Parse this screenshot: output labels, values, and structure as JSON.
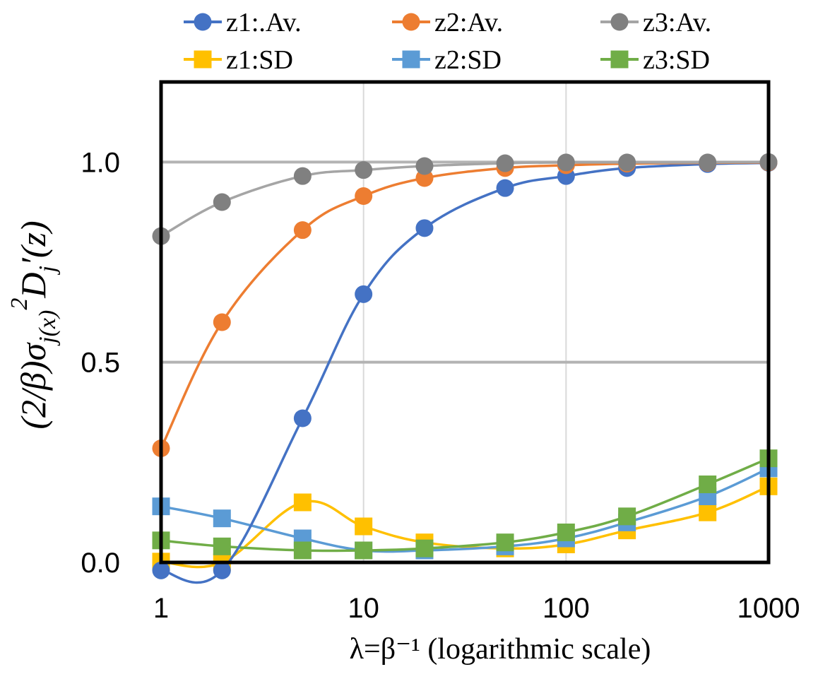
{
  "chart_data": {
    "type": "line",
    "title": "",
    "xlabel": "λ=β⁻¹ (logarithmic scale)",
    "ylabel": "(2/β)σ_j(x)² D_j′(z)",
    "xscale": "log",
    "xlim": [
      1,
      1000
    ],
    "ylim": [
      0,
      1.2
    ],
    "x_ticks": [
      "1",
      "10",
      "100",
      "1000"
    ],
    "y_ticks": [
      "0.0",
      "0.5",
      "1.0"
    ],
    "grid": true,
    "legend_position": "top",
    "x": [
      1,
      2,
      5,
      10,
      20,
      50,
      100,
      200,
      500,
      1000
    ],
    "series": [
      {
        "name": "z1:.Av.",
        "color": "#4472C4",
        "marker": "circle",
        "values": [
          -0.02,
          -0.02,
          0.36,
          0.67,
          0.835,
          0.935,
          0.965,
          0.985,
          0.995,
          0.998
        ]
      },
      {
        "name": "z2:Av.",
        "color": "#ED7D31",
        "marker": "circle",
        "values": [
          0.285,
          0.6,
          0.83,
          0.915,
          0.96,
          0.985,
          0.992,
          0.996,
          0.998,
          0.999
        ]
      },
      {
        "name": "z3:Av.",
        "color": "#A5A5A5",
        "marker_color": "#808080",
        "marker": "circle",
        "values": [
          0.815,
          0.9,
          0.965,
          0.98,
          0.99,
          0.997,
          0.999,
          0.999,
          0.999,
          1.0
        ]
      },
      {
        "name": "z1:SD",
        "color": "#FFC000",
        "marker": "square",
        "values": [
          0.002,
          0.0,
          0.15,
          0.09,
          0.05,
          0.035,
          0.045,
          0.08,
          0.125,
          0.19
        ]
      },
      {
        "name": "z2:SD",
        "color": "#5B9BD5",
        "marker": "square",
        "values": [
          0.14,
          0.11,
          0.06,
          0.03,
          0.03,
          0.04,
          0.06,
          0.1,
          0.165,
          0.235
        ]
      },
      {
        "name": "z3:SD",
        "color": "#70AD47",
        "marker": "square",
        "values": [
          0.055,
          0.04,
          0.03,
          0.03,
          0.035,
          0.05,
          0.075,
          0.115,
          0.195,
          0.26
        ]
      }
    ]
  }
}
